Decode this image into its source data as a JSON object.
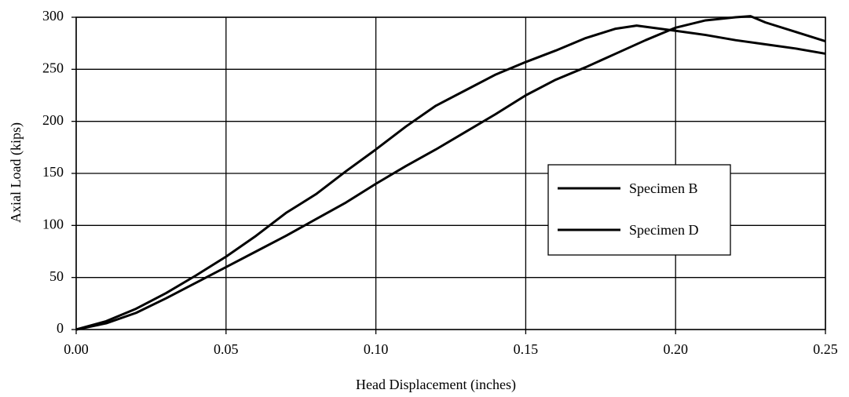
{
  "chart_data": {
    "type": "line",
    "xlabel": "Head Displacement (inches)",
    "ylabel": "Axial Load (kips)",
    "xlim": [
      0,
      0.25
    ],
    "ylim": [
      0,
      300
    ],
    "xticks": [
      {
        "value": 0,
        "label": "0.00"
      },
      0.05,
      {
        "value": 0.1,
        "label": "0.10"
      },
      0.15,
      {
        "value": 0.2,
        "label": "0.20"
      },
      0.25
    ],
    "yticks": [
      0,
      50,
      100,
      150,
      200,
      250,
      300
    ],
    "grid": true,
    "legend": "right",
    "series": [
      {
        "name": "Specimen B",
        "color": "#000000",
        "x": [
          0,
          0.01,
          0.02,
          0.03,
          0.04,
          0.05,
          0.06,
          0.07,
          0.08,
          0.09,
          0.1,
          0.11,
          0.12,
          0.13,
          0.14,
          0.15,
          0.16,
          0.17,
          0.18,
          0.187,
          0.2,
          0.21,
          0.22,
          0.23,
          0.24,
          0.25
        ],
        "values": [
          0,
          8,
          20,
          35,
          52,
          70,
          90,
          112,
          130,
          152,
          173,
          195,
          215,
          230,
          245,
          257,
          268,
          280,
          289,
          292,
          287,
          283,
          278,
          274,
          270,
          265
        ]
      },
      {
        "name": "Specimen D",
        "color": "#000000",
        "x": [
          0,
          0.01,
          0.02,
          0.03,
          0.04,
          0.05,
          0.06,
          0.07,
          0.08,
          0.09,
          0.1,
          0.11,
          0.12,
          0.13,
          0.14,
          0.15,
          0.16,
          0.17,
          0.18,
          0.19,
          0.2,
          0.21,
          0.22,
          0.225,
          0.23,
          0.24,
          0.25
        ],
        "values": [
          0,
          6,
          16,
          30,
          45,
          60,
          75,
          90,
          106,
          122,
          140,
          157,
          173,
          190,
          207,
          225,
          240,
          252,
          265,
          278,
          290,
          297,
          300,
          301,
          295,
          286,
          277
        ]
      }
    ]
  }
}
